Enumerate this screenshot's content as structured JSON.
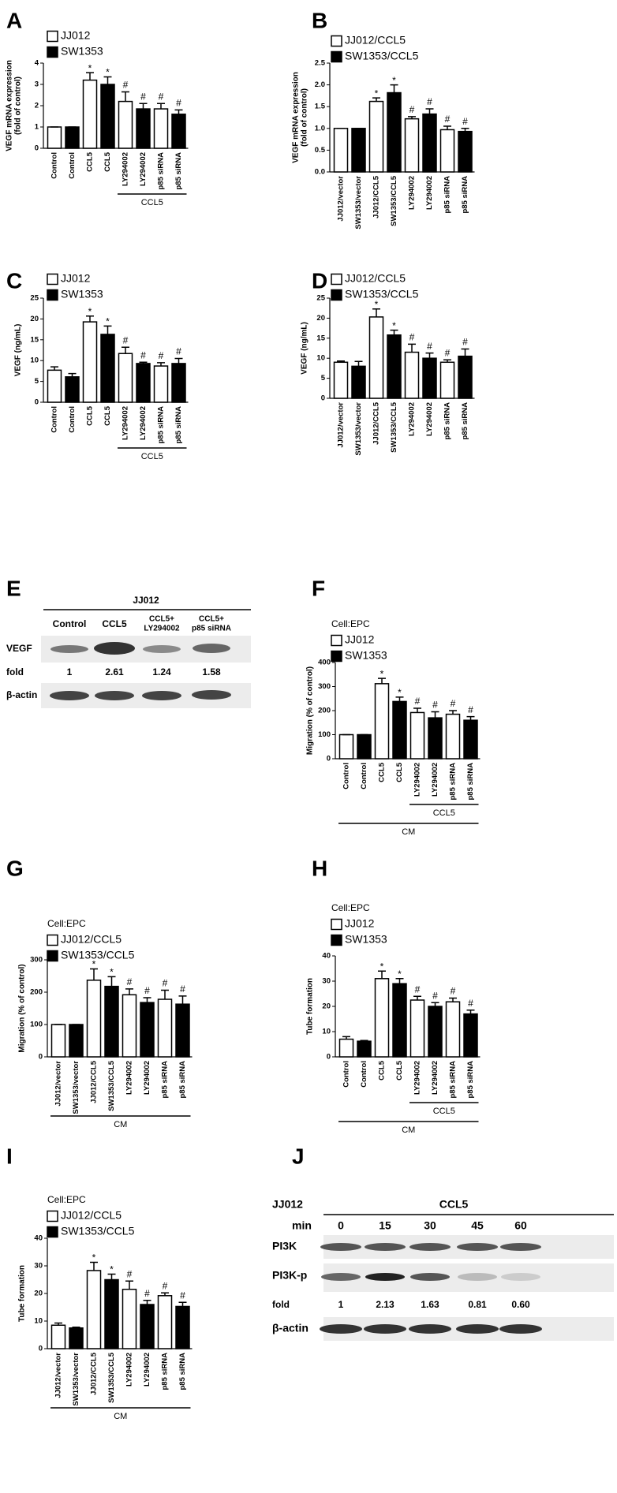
{
  "chart_data": [
    {
      "panel": "A",
      "type": "bar",
      "ylabel": [
        "VEGF mRNA expression",
        "(fold of control)"
      ],
      "categories": [
        "Control",
        "Control",
        "CCL5",
        "CCL5",
        "LY294002",
        "LY294002",
        "p85 siRNA",
        "p85 siRNA"
      ],
      "series": [
        {
          "name": "JJ012",
          "color": "#ffffff",
          "values": [
            1,
            null,
            3.2,
            null,
            2.2,
            null,
            1.85,
            null
          ],
          "errors": [
            0,
            null,
            0.35,
            null,
            0.45,
            null,
            0.25,
            null
          ]
        },
        {
          "name": "SW1353",
          "color": "#000000",
          "values": [
            null,
            1,
            null,
            3.0,
            null,
            1.85,
            null,
            1.6
          ],
          "errors": [
            null,
            0,
            null,
            0.35,
            null,
            0.25,
            null,
            0.2
          ]
        }
      ],
      "annotations": [
        null,
        null,
        "*",
        "*",
        "#",
        "#",
        "#",
        "#"
      ],
      "ylim": [
        0,
        4
      ],
      "yticks": [
        0,
        1,
        2,
        3,
        4
      ],
      "brackets": [
        {
          "label": "CCL5",
          "from": 4,
          "to": 7
        }
      ]
    },
    {
      "panel": "B",
      "type": "bar",
      "ylabel": [
        "VEGF mRNA expression",
        "(fold of control)"
      ],
      "categories": [
        "JJ012/vector",
        "SW1353/vector",
        "JJ012/CCL5",
        "SW1353/CCL5",
        "LY294002",
        "LY294002",
        "p85 siRNA",
        "p85 siRNA"
      ],
      "series": [
        {
          "name": "JJ012/CCL5",
          "color": "#ffffff",
          "values": [
            1,
            null,
            1.62,
            null,
            1.22,
            null,
            0.97,
            null
          ],
          "errors": [
            0,
            null,
            0.08,
            null,
            0.05,
            null,
            0.08,
            null
          ]
        },
        {
          "name": "SW1353/CCL5",
          "color": "#000000",
          "values": [
            null,
            1,
            null,
            1.82,
            null,
            1.33,
            null,
            0.93
          ],
          "errors": [
            null,
            0,
            null,
            0.18,
            null,
            0.12,
            null,
            0.07
          ]
        }
      ],
      "annotations": [
        null,
        null,
        "*",
        "*",
        "#",
        "#",
        "#",
        "#"
      ],
      "ylim": [
        0,
        2.5
      ],
      "yticks": [
        {
          "value": 0,
          "label": "0.0"
        },
        0.5,
        {
          "value": 1,
          "label": "1.0"
        },
        1.5,
        {
          "value": 2,
          "label": "2.0"
        },
        2.5
      ],
      "brackets": []
    },
    {
      "panel": "C",
      "type": "bar",
      "ylabel": [
        "VEGF (ng/mL)"
      ],
      "categories": [
        "Control",
        "Control",
        "CCL5",
        "CCL5",
        "LY294002",
        "LY294002",
        "p85 siRNA",
        "p85 siRNA"
      ],
      "series": [
        {
          "name": "JJ012",
          "color": "#ffffff",
          "values": [
            7.7,
            null,
            19.3,
            null,
            11.7,
            null,
            8.7,
            null
          ],
          "errors": [
            0.8,
            null,
            1.4,
            null,
            1.5,
            null,
            0.8,
            null
          ]
        },
        {
          "name": "SW1353",
          "color": "#000000",
          "values": [
            null,
            6.1,
            null,
            16.3,
            null,
            9.3,
            null,
            9.3
          ],
          "errors": [
            null,
            0.8,
            null,
            2.0,
            null,
            0.3,
            null,
            1.2
          ]
        }
      ],
      "annotations": [
        null,
        null,
        "*",
        "*",
        "#",
        "#",
        "#",
        "#"
      ],
      "ylim": [
        0,
        25
      ],
      "yticks": [
        0,
        5,
        10,
        15,
        20,
        25
      ],
      "brackets": [
        {
          "label": "CCL5",
          "from": 4,
          "to": 7
        }
      ]
    },
    {
      "panel": "D",
      "type": "bar",
      "ylabel": [
        "VEGF (ng/mL)"
      ],
      "categories": [
        "JJ012/vector",
        "SW1353/vector",
        "JJ012/CCL5",
        "SW1353/CCL5",
        "LY294002",
        "LY294002",
        "p85 siRNA",
        "p85 siRNA"
      ],
      "series": [
        {
          "name": "JJ012/CCL5",
          "color": "#ffffff",
          "values": [
            9,
            null,
            20.3,
            null,
            11.5,
            null,
            9,
            null
          ],
          "errors": [
            0.3,
            null,
            2,
            null,
            2,
            null,
            0.6,
            null
          ]
        },
        {
          "name": "SW1353/CCL5",
          "color": "#000000",
          "values": [
            null,
            8,
            null,
            15.8,
            null,
            10,
            null,
            10.5
          ],
          "errors": [
            null,
            1.2,
            null,
            1.2,
            null,
            1.3,
            null,
            1.8
          ]
        }
      ],
      "annotations": [
        null,
        null,
        "*",
        "*",
        "#",
        "#",
        "#",
        "#"
      ],
      "ylim": [
        0,
        25
      ],
      "yticks": [
        0,
        5,
        10,
        15,
        20,
        25
      ],
      "brackets": []
    },
    {
      "panel": "F",
      "type": "bar",
      "cell_label": "Cell:EPC",
      "ylabel": [
        "Migration (% of control)"
      ],
      "categories": [
        "Control",
        "Control",
        "CCL5",
        "CCL5",
        "LY294002",
        "LY294002",
        "p85 siRNA",
        "p85 siRNA"
      ],
      "series": [
        {
          "name": "JJ012",
          "color": "#ffffff",
          "values": [
            100,
            null,
            312,
            null,
            192,
            null,
            185,
            null
          ],
          "errors": [
            0,
            null,
            22,
            null,
            18,
            null,
            15,
            null
          ]
        },
        {
          "name": "SW1353",
          "color": "#000000",
          "values": [
            null,
            100,
            null,
            238,
            null,
            170,
            null,
            160
          ],
          "errors": [
            null,
            0,
            null,
            18,
            null,
            25,
            null,
            15
          ]
        }
      ],
      "annotations": [
        null,
        null,
        "*",
        "*",
        "#",
        "#",
        "#",
        "#"
      ],
      "ylim": [
        0,
        400
      ],
      "yticks": [
        0,
        100,
        200,
        300,
        400
      ],
      "brackets": [
        {
          "label": "CCL5",
          "from": 4,
          "to": 7
        },
        {
          "label": "CM",
          "from": 0,
          "to": 7
        }
      ]
    },
    {
      "panel": "G",
      "type": "bar",
      "cell_label": "Cell:EPC",
      "ylabel": [
        "Migration (% of control)"
      ],
      "categories": [
        "JJ012/vector",
        "SW1353/vector",
        "JJ012/CCL5",
        "SW1353/CCL5",
        "LY294002",
        "LY294002",
        "p85 siRNA",
        "p85 siRNA"
      ],
      "series": [
        {
          "name": "JJ012/CCL5",
          "color": "#ffffff",
          "values": [
            100,
            null,
            237,
            null,
            192,
            null,
            178,
            null
          ],
          "errors": [
            0,
            null,
            35,
            null,
            18,
            null,
            28,
            null
          ]
        },
        {
          "name": "SW1353/CCL5",
          "color": "#000000",
          "values": [
            null,
            100,
            null,
            218,
            null,
            168,
            null,
            163
          ],
          "errors": [
            null,
            0,
            null,
            30,
            null,
            15,
            null,
            25
          ]
        }
      ],
      "annotations": [
        null,
        null,
        "*",
        "*",
        "#",
        "#",
        "#",
        "#"
      ],
      "ylim": [
        0,
        300
      ],
      "yticks": [
        0,
        100,
        200,
        300
      ],
      "brackets": [
        {
          "label": "CM",
          "from": 0,
          "to": 7
        }
      ]
    },
    {
      "panel": "H",
      "type": "bar",
      "cell_label": "Cell:EPC",
      "ylabel": [
        "Tube formation"
      ],
      "categories": [
        "Control",
        "Control",
        "CCL5",
        "CCL5",
        "LY294002",
        "LY294002",
        "p85 siRNA",
        "p85 siRNA"
      ],
      "series": [
        {
          "name": "JJ012",
          "color": "#ffffff",
          "values": [
            7,
            null,
            31,
            null,
            22.5,
            null,
            21.8,
            null
          ],
          "errors": [
            1,
            null,
            3,
            null,
            1.5,
            null,
            1.5,
            null
          ]
        },
        {
          "name": "SW1353",
          "color": "#000000",
          "values": [
            null,
            6.2,
            null,
            29,
            null,
            20,
            null,
            17
          ],
          "errors": [
            null,
            0.3,
            null,
            2,
            null,
            1.5,
            null,
            1.5
          ]
        }
      ],
      "annotations": [
        null,
        null,
        "*",
        "*",
        "#",
        "#",
        "#",
        "#"
      ],
      "ylim": [
        0,
        40
      ],
      "yticks": [
        0,
        10,
        20,
        30,
        40
      ],
      "brackets": [
        {
          "label": "CCL5",
          "from": 4,
          "to": 7
        },
        {
          "label": "CM",
          "from": 0,
          "to": 7
        }
      ]
    },
    {
      "panel": "I",
      "type": "bar",
      "cell_label": "Cell:EPC",
      "ylabel": [
        "Tube formation"
      ],
      "categories": [
        "JJ012/vector",
        "SW1353/vector",
        "JJ012/CCL5",
        "SW1353/CCL5",
        "LY294002",
        "LY294002",
        "p85 siRNA",
        "p85 siRNA"
      ],
      "series": [
        {
          "name": "JJ012/CCL5",
          "color": "#ffffff",
          "values": [
            8.5,
            null,
            28.3,
            null,
            21.5,
            null,
            19.2,
            null
          ],
          "errors": [
            0.8,
            null,
            3,
            null,
            3,
            null,
            1,
            null
          ]
        },
        {
          "name": "SW1353/CCL5",
          "color": "#000000",
          "values": [
            null,
            7.5,
            null,
            25,
            null,
            16,
            null,
            15.3
          ],
          "errors": [
            null,
            0.3,
            null,
            2,
            null,
            1.5,
            null,
            1.5
          ]
        }
      ],
      "annotations": [
        null,
        null,
        "*",
        "*",
        "#",
        "#",
        "#",
        "#"
      ],
      "ylim": [
        0,
        40
      ],
      "yticks": [
        0,
        10,
        20,
        30,
        40
      ],
      "brackets": [
        {
          "label": "CM",
          "from": 0,
          "to": 7
        }
      ]
    }
  ],
  "blot_e": {
    "panel": "E",
    "header": "JJ012",
    "columns": [
      [
        "Control"
      ],
      [
        "CCL5"
      ],
      [
        "CCL5+",
        "LY294002"
      ],
      [
        "CCL5+",
        "p85 siRNA"
      ]
    ],
    "rows": [
      "VEGF",
      "fold",
      "β-actin"
    ],
    "fold": [
      "1",
      "2.61",
      "1.24",
      "1.58"
    ]
  },
  "blot_j": {
    "panel": "J",
    "cell": "JJ012",
    "treatment": "CCL5",
    "time_label": "min",
    "times": [
      0,
      15,
      30,
      45,
      60
    ],
    "rows": [
      "PI3K",
      "PI3K-p",
      "fold",
      "β-actin"
    ],
    "fold": [
      "1",
      "2.13",
      "1.63",
      "0.81",
      "0.60"
    ]
  }
}
